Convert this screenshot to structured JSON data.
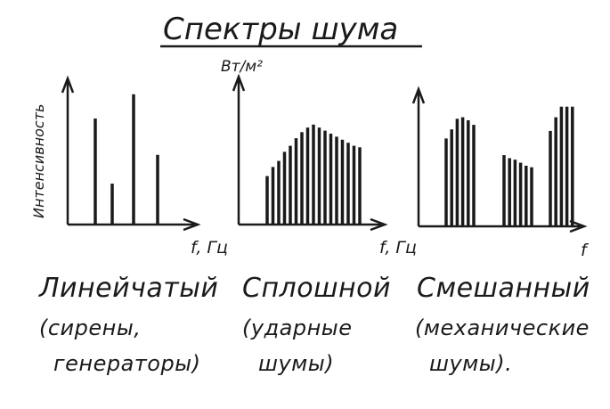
{
  "title": "Спектры шума",
  "unit_label": "Вт/м²",
  "y_axis_label": "Интенсивность",
  "panels": [
    {
      "x_label": "f, Гц",
      "name": "Линейчатый",
      "desc_line1": "(сирены,",
      "desc_line2": "генераторы)"
    },
    {
      "x_label": "f, Гц",
      "name": "Сплошной",
      "desc_line1": "(ударные",
      "desc_line2": "шумы)"
    },
    {
      "x_label": "f",
      "name": "Смешанный",
      "desc_line1": "(механические",
      "desc_line2": "шумы)."
    }
  ],
  "chart_data": [
    {
      "type": "bar",
      "spectrum": "line",
      "values": [
        0.7,
        0.27,
        0.86,
        0.46
      ]
    },
    {
      "type": "bar",
      "spectrum": "continuous",
      "values": [
        0.32,
        0.38,
        0.42,
        0.48,
        0.52,
        0.57,
        0.61,
        0.64,
        0.66,
        0.64,
        0.62,
        0.6,
        0.58,
        0.56,
        0.54,
        0.52,
        0.51
      ]
    },
    {
      "type": "bar",
      "spectrum": "mixed",
      "groups": [
        [
          0.58,
          0.64,
          0.71,
          0.72,
          0.7,
          0.67
        ],
        [
          0.47,
          0.45,
          0.44,
          0.42,
          0.4,
          0.39
        ],
        [
          0.63,
          0.72,
          0.79,
          0.79,
          0.79
        ]
      ]
    }
  ]
}
